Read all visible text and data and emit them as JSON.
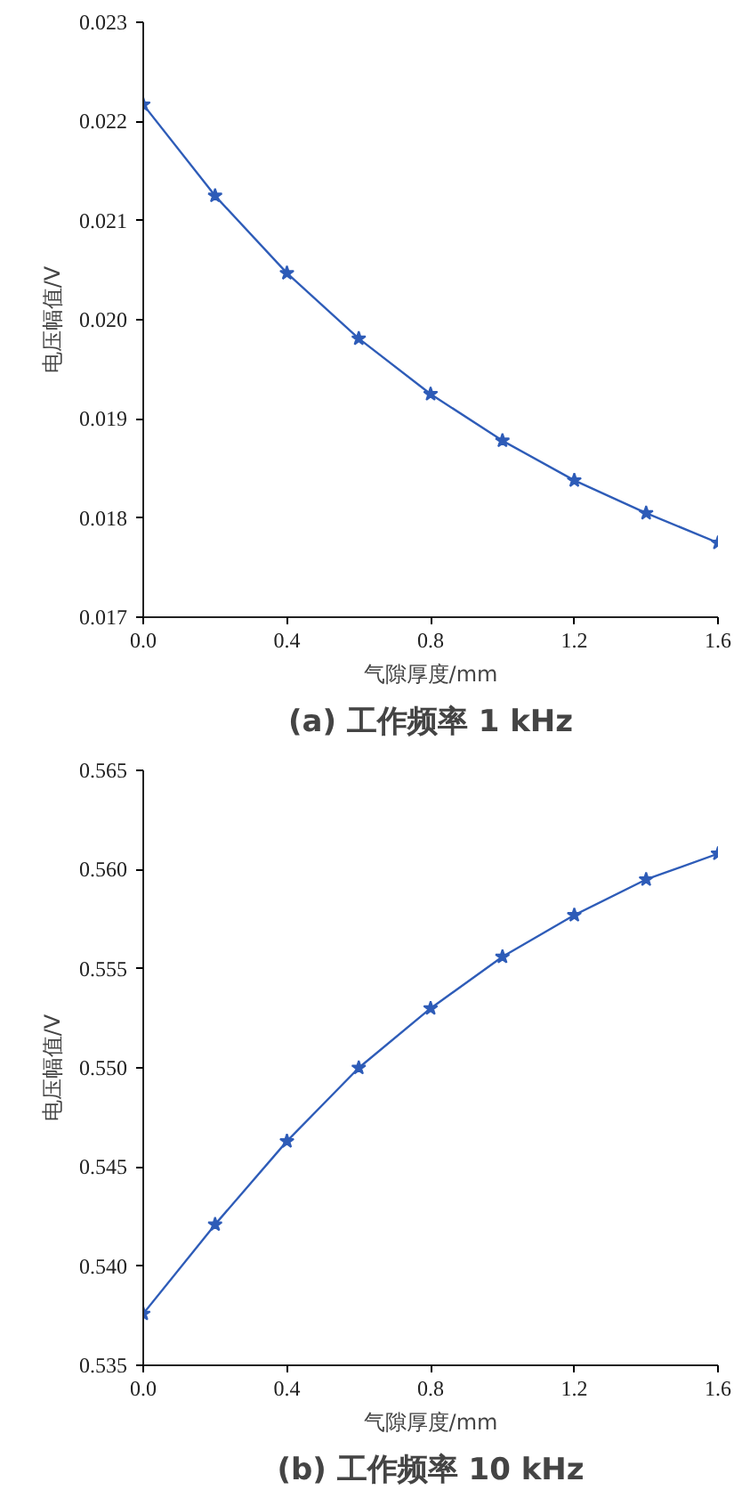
{
  "chart_data": [
    {
      "type": "line",
      "title": "(a) 工作频率 1 kHz",
      "xlabel": "气隙厚度/mm",
      "ylabel": "电压幅值/V",
      "x": [
        0,
        0.2,
        0.4,
        0.6,
        0.8,
        1.0,
        1.2,
        1.4,
        1.6
      ],
      "series": [
        {
          "color": "#2e5cb8",
          "values": [
            0.02217,
            0.02125,
            0.02047,
            0.01981,
            0.01925,
            0.01878,
            0.01838,
            0.01805,
            0.01775
          ]
        }
      ],
      "xlim": [
        0,
        1.6
      ],
      "xticks": [
        {
          "value": 0,
          "label": "0.0"
        },
        0.4,
        0.8,
        1.2,
        1.6
      ],
      "ylim": [
        0.017,
        0.023
      ],
      "yticks": [
        0.017,
        0.018,
        0.019,
        {
          "value": 0.02,
          "label": "0.020"
        },
        0.021,
        0.022,
        0.023
      ],
      "marker": "star",
      "grid": false
    },
    {
      "type": "line",
      "title": "(b) 工作频率 10 kHz",
      "xlabel": "气隙厚度/mm",
      "ylabel": "电压幅值/V",
      "x": [
        0,
        0.2,
        0.4,
        0.6,
        0.8,
        1.0,
        1.2,
        1.4,
        1.6
      ],
      "series": [
        {
          "color": "#2e5cb8",
          "values": [
            0.5376,
            0.5421,
            0.5463,
            0.55,
            0.553,
            0.5556,
            0.5577,
            0.5595,
            0.5608
          ]
        }
      ],
      "xlim": [
        0,
        1.6
      ],
      "xticks": [
        {
          "value": 0,
          "label": "0.0"
        },
        0.4,
        0.8,
        1.2,
        1.6
      ],
      "ylim": [
        0.535,
        0.565
      ],
      "yticks": [
        0.535,
        {
          "value": 0.54,
          "label": "0.540"
        },
        0.545,
        {
          "value": 0.55,
          "label": "0.550"
        },
        0.555,
        {
          "value": 0.56,
          "label": "0.560"
        },
        0.565
      ],
      "marker": "star",
      "grid": false
    }
  ]
}
